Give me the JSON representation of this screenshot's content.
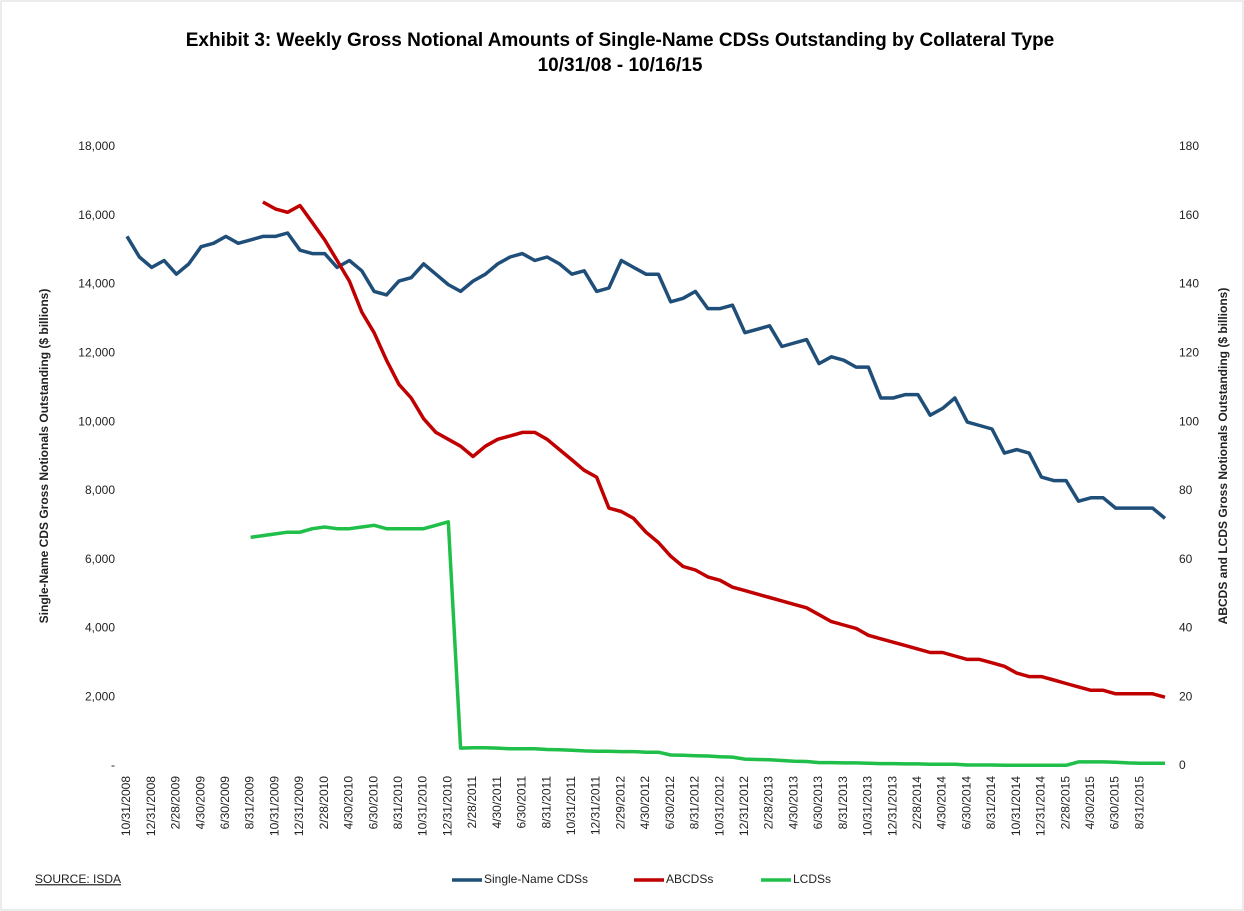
{
  "chart_data": {
    "type": "line",
    "title": "Exhibit 3: Weekly Gross Notional Amounts of Single-Name CDSs Outstanding by Collateral Type",
    "subtitle": "10/31/08 - 10/16/15",
    "y_label": "Single-Name CDS Gross Notionals Outstanding ($ billions)",
    "y2_label": "ABCDS and LCDS Gross Notionals Outstanding ($ billions)",
    "source": "SOURCE: ISDA",
    "categories": [
      "10/31/2008",
      null,
      "12/31/2008",
      null,
      "2/28/2009",
      null,
      "4/30/2009",
      null,
      "6/30/2009",
      null,
      "8/31/2009",
      null,
      "10/31/2009",
      null,
      "12/31/2009",
      null,
      "2/28/2010",
      null,
      "4/30/2010",
      null,
      "6/30/2010",
      null,
      "8/31/2010",
      null,
      "10/31/2010",
      null,
      "12/31/2010",
      null,
      "2/28/2011",
      null,
      "4/30/2011",
      null,
      "6/30/2011",
      null,
      "8/31/2011",
      null,
      "10/31/2011",
      null,
      "12/31/2011",
      null,
      "2/29/2012",
      null,
      "4/30/2012",
      null,
      "6/30/2012",
      null,
      "8/31/2012",
      null,
      "10/31/2012",
      null,
      "12/31/2012",
      null,
      "2/28/2013",
      null,
      "4/30/2013",
      null,
      "6/30/2013",
      null,
      "8/31/2013",
      null,
      "10/31/2013",
      null,
      "12/31/2013",
      null,
      "2/28/2014",
      null,
      "4/30/2014",
      null,
      "6/30/2014",
      null,
      "8/31/2014",
      null,
      "10/31/2014",
      null,
      "12/31/2014",
      null,
      "2/28/2015",
      null,
      "4/30/2015",
      null,
      "6/30/2015",
      null,
      "8/31/2015",
      null,
      null
    ],
    "series": [
      {
        "name": "Single-Name CDSs",
        "color": "#1f4e79",
        "axis": "y",
        "values": [
          15400,
          14800,
          14500,
          14700,
          14300,
          14600,
          15100,
          15200,
          15400,
          15200,
          15300,
          15400,
          15400,
          15500,
          15000,
          14900,
          14900,
          14500,
          14700,
          14400,
          13800,
          13700,
          14100,
          14200,
          14600,
          14300,
          14000,
          13800,
          14100,
          14300,
          14600,
          14800,
          14900,
          14700,
          14800,
          14600,
          14300,
          14400,
          13800,
          13900,
          14700,
          14500,
          14300,
          14300,
          13500,
          13600,
          13800,
          13300,
          13300,
          13400,
          12600,
          12700,
          12800,
          12200,
          12300,
          12400,
          11700,
          11900,
          11800,
          11600,
          11600,
          10700,
          10700,
          10800,
          10800,
          10200,
          10400,
          10700,
          10000,
          9900,
          9800,
          9100,
          9200,
          9100,
          8400,
          8300,
          8300,
          7700,
          7800,
          7800,
          7500,
          7500,
          7500,
          7500,
          7200
        ]
      },
      {
        "name": "ABCDSs",
        "color": "#c00000",
        "axis": "y2",
        "values": [
          null,
          null,
          null,
          null,
          null,
          null,
          null,
          null,
          null,
          null,
          null,
          164,
          162,
          161,
          163,
          158,
          153,
          147,
          141,
          132,
          126,
          118,
          111,
          107,
          101,
          97,
          95,
          93,
          90,
          93,
          95,
          96,
          97,
          97,
          95,
          92,
          89,
          86,
          84,
          75,
          74,
          72,
          68,
          65,
          61,
          58,
          57,
          55,
          54,
          52,
          51,
          50,
          49,
          48,
          47,
          46,
          44,
          42,
          41,
          40,
          38,
          37,
          36,
          35,
          34,
          33,
          33,
          32,
          31,
          31,
          30,
          29,
          27,
          26,
          26,
          25,
          24,
          23,
          22,
          22,
          21,
          21,
          21,
          21,
          20
        ]
      },
      {
        "name": "LCDSs",
        "color": "#1fbf4a",
        "axis": "y2",
        "values": [
          null,
          null,
          null,
          null,
          null,
          null,
          null,
          null,
          null,
          null,
          66.5,
          67,
          67.5,
          68,
          68,
          69,
          69.5,
          69,
          69,
          69.5,
          70,
          69,
          69,
          69,
          69,
          70,
          71,
          5.2,
          5.3,
          5.3,
          5.2,
          5,
          5,
          5,
          4.8,
          4.7,
          4.6,
          4.4,
          4.3,
          4.3,
          4.2,
          4.2,
          4,
          4,
          3.2,
          3.1,
          3,
          2.9,
          2.7,
          2.6,
          2,
          1.9,
          1.8,
          1.6,
          1.4,
          1.3,
          1,
          1,
          0.9,
          0.9,
          0.8,
          0.7,
          0.7,
          0.6,
          0.6,
          0.5,
          0.5,
          0.5,
          0.3,
          0.3,
          0.3,
          0.2,
          0.2,
          0.2,
          0.2,
          0.2,
          0.2,
          1.2,
          1.2,
          1.2,
          1.1,
          0.9,
          0.8,
          0.8,
          0.8
        ]
      }
    ],
    "ylim": [
      0,
      18000
    ],
    "yticks": [
      {
        "value": 0,
        "label": "-"
      },
      {
        "value": 2000,
        "label": "2,000"
      },
      {
        "value": 4000,
        "label": "4,000"
      },
      {
        "value": 6000,
        "label": "6,000"
      },
      {
        "value": 8000,
        "label": "8,000"
      },
      {
        "value": 10000,
        "label": "10,000"
      },
      {
        "value": 12000,
        "label": "12,000"
      },
      {
        "value": 14000,
        "label": "14,000"
      },
      {
        "value": 16000,
        "label": "16,000"
      },
      {
        "value": 18000,
        "label": "18,000"
      }
    ],
    "y2lim": [
      0,
      180
    ],
    "y2ticks": [
      0,
      20,
      40,
      60,
      80,
      100,
      120,
      140,
      160,
      180
    ],
    "grid": false,
    "legend": "bottom"
  }
}
